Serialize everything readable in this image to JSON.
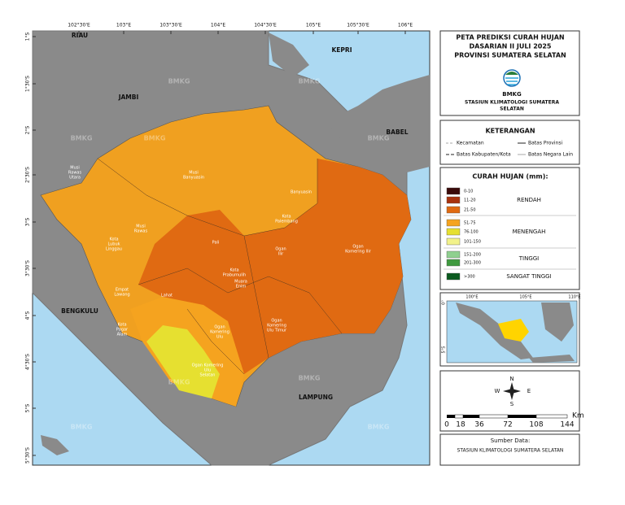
{
  "map": {
    "top_labels": [
      "102°30'E",
      "103°E",
      "103°30'E",
      "104°E",
      "104°30'E",
      "105°E",
      "105°30'E",
      "106°E"
    ],
    "left_labels": [
      "1°S",
      "1°30'S",
      "2°S",
      "2°30'S",
      "3°S",
      "3°30'S",
      "4°S",
      "4°30'S",
      "5°S",
      "5°30'S"
    ],
    "regions": [
      "RIAU",
      "JAMBI",
      "KEPRI",
      "BABEL",
      "BENGKULU",
      "LAMPUNG"
    ],
    "districts": [
      [
        "Musi",
        "Rawas",
        "Utara"
      ],
      [
        "Musi",
        "Banyuasin"
      ],
      [
        "Banyuasin"
      ],
      [
        "Musi",
        "Rawas"
      ],
      [
        "Kota",
        "Lubuk",
        "Linggau"
      ],
      [
        "Pali"
      ],
      [
        "Kota",
        "Palembang"
      ],
      [
        "Ogan",
        "Ilir"
      ],
      [
        "Kota",
        "Prabumulih"
      ],
      [
        "Muara",
        "Enim"
      ],
      [
        "Ogan",
        "Komering Ilir"
      ],
      [
        "Empat",
        "Lawang"
      ],
      [
        "Lahat"
      ],
      [
        "Kota",
        "Pagar",
        "Alam"
      ],
      [
        "Ogan",
        "Komering",
        "Ulu"
      ],
      [
        "Ogan",
        "Komering",
        "Ulu Timur"
      ],
      [
        "Ogan Komering",
        "Ulu",
        "Selatan"
      ]
    ],
    "watermark": "BMKG"
  },
  "panel": {
    "title": [
      "PETA PREDIKSI CURAH HUJAN",
      "DASARIAN II JULI 2025",
      "PROVINSI SUMATERA SELATAN"
    ],
    "logo_text": "BMKG",
    "station": [
      "STASIUN KLIMATOLOGI SUMATERA",
      "SELATAN"
    ],
    "legend_title": "KETERANGAN",
    "legend_items": [
      "Kecamatan",
      "Batas Provinsi",
      "Batas Kabupaten/Kota",
      "Batas Negara Lain"
    ],
    "rain_title": "CURAH HUJAN (mm):",
    "rain_classes": [
      "0-10",
      "11-20",
      "21-50",
      "51-75",
      "76-100",
      "101-150",
      "151-200",
      "201-300",
      ">300"
    ],
    "rain_groups": [
      "RENDAH",
      "MENENGAH",
      "TINGGI",
      "SANGAT TINGGI"
    ],
    "inset_top": [
      "100°E",
      "105°E",
      "110°E"
    ],
    "inset_left": [
      "0°",
      "5°S"
    ],
    "compass": [
      "N",
      "E",
      "S",
      "W"
    ],
    "scale": [
      "0",
      "18",
      "36",
      "72",
      "108",
      "144"
    ],
    "scale_unit": "Km",
    "source_title": "Sumber Data:",
    "source": "STASIUN KLIMATOLOGI SUMATERA SELATAN"
  }
}
